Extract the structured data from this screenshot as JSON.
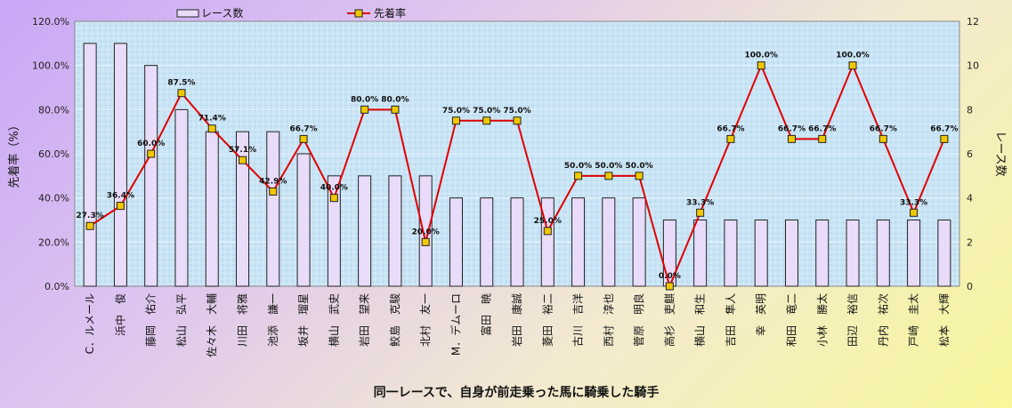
{
  "chart_data": {
    "type": "bar+line",
    "xlabel": "同一レースで、自身が前走乗った馬に騎乗した騎手",
    "ylabel_left": "先着率（%）",
    "ylabel_right": "レース数",
    "ylim_left": [
      0,
      120
    ],
    "ylim_right": [
      0,
      12
    ],
    "left_ticks": [
      "0.0%",
      "20.0%",
      "40.0%",
      "60.0%",
      "80.0%",
      "100.0%",
      "120.0%"
    ],
    "right_ticks": [
      "0",
      "2",
      "4",
      "6",
      "8",
      "10",
      "12"
    ],
    "grid": true,
    "legend": {
      "position": "top",
      "bar": "レース数",
      "line": "先着率"
    },
    "categories": [
      "C．ルメール",
      "浜中　俊",
      "藤岡　佑介",
      "松山　弘平",
      "佐々木　大輔",
      "川田　将雅",
      "池添　謙一",
      "坂井　瑠星",
      "横山　武史",
      "岩田　望来",
      "鮫島　克駿",
      "北村　友一",
      "M．デムーロ",
      "富田　暁",
      "岩田　康誠",
      "菱田　裕二",
      "古川　吉洋",
      "西村　淳也",
      "菅原　明良",
      "高杉　吏麒",
      "横山　和生",
      "吉田　隼人",
      "幸　英明",
      "和田　竜二",
      "小林　勝太",
      "田辺　裕信",
      "丹内　祐次",
      "戸崎　圭太",
      "松本　大輝"
    ],
    "series": [
      {
        "name": "レース数",
        "type": "bar",
        "axis": "right",
        "values": [
          11,
          11,
          10,
          8,
          7,
          7,
          7,
          6,
          5,
          5,
          5,
          5,
          4,
          4,
          4,
          4,
          4,
          4,
          4,
          3,
          3,
          3,
          3,
          3,
          3,
          3,
          3,
          3,
          3
        ]
      },
      {
        "name": "先着率",
        "type": "line",
        "axis": "left",
        "values": [
          27.3,
          36.4,
          60.0,
          87.5,
          71.4,
          57.1,
          42.9,
          66.7,
          40.0,
          80.0,
          80.0,
          20.0,
          75.0,
          75.0,
          75.0,
          25.0,
          50.0,
          50.0,
          50.0,
          0.0,
          33.3,
          66.7,
          100.0,
          66.7,
          66.7,
          100.0,
          66.7,
          33.3,
          66.7
        ],
        "labels": [
          "27.3%",
          "36.4%",
          "60.0%",
          "87.5%",
          "71.4%",
          "57.1%",
          "42.9%",
          "66.7%",
          "40.0%",
          "80.0%",
          "80.0%",
          "20.0%",
          "75.0%",
          "75.0%",
          "75.0%",
          "25.0%",
          "50.0%",
          "50.0%",
          "50.0%",
          "0.0%",
          "33.3%",
          "66.7%",
          "100.0%",
          "66.7%",
          "66.7%",
          "100.0%",
          "66.7%",
          "33.3%",
          "66.7%"
        ]
      }
    ],
    "colors": {
      "bar_fill": "#e9dcfa",
      "bar_stroke": "#222222",
      "line": "#e00000",
      "marker_fill": "#f0c800",
      "marker_stroke": "#222222",
      "plot_bg": "#c7e3f4"
    }
  }
}
